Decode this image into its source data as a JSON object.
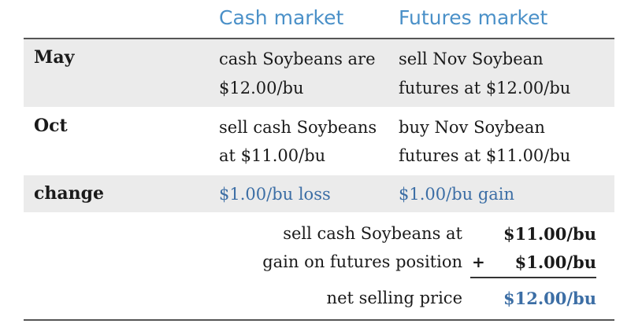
{
  "headers": {
    "cash": "Cash market",
    "futures": "Futures market"
  },
  "rows": {
    "may": {
      "label": "May",
      "cash_line1": "cash Soybeans are",
      "cash_line2": "$12.00/bu",
      "futures_line1": "sell Nov Soybean",
      "futures_line2": "futures at $12.00/bu"
    },
    "oct": {
      "label": "Oct",
      "cash_line1": "sell cash Soybeans",
      "cash_line2": "at $11.00/bu",
      "futures_line1": "buy Nov Soybean",
      "futures_line2": "futures at $11.00/bu"
    },
    "change": {
      "label": "change",
      "cash": "$1.00/bu loss",
      "futures": "$1.00/bu gain"
    }
  },
  "calculation": {
    "line1_label": "sell cash Soybeans at",
    "line1_value": "$11.00/bu",
    "line2_label": "gain on futures position",
    "line2_operator": "+",
    "line2_value": "$1.00/bu",
    "total_label": "net selling price",
    "total_value": "$12.00/bu"
  },
  "colors": {
    "header_blue": "#4a90c8",
    "value_blue": "#3c6ea5",
    "band_gray": "#ebebeb"
  }
}
